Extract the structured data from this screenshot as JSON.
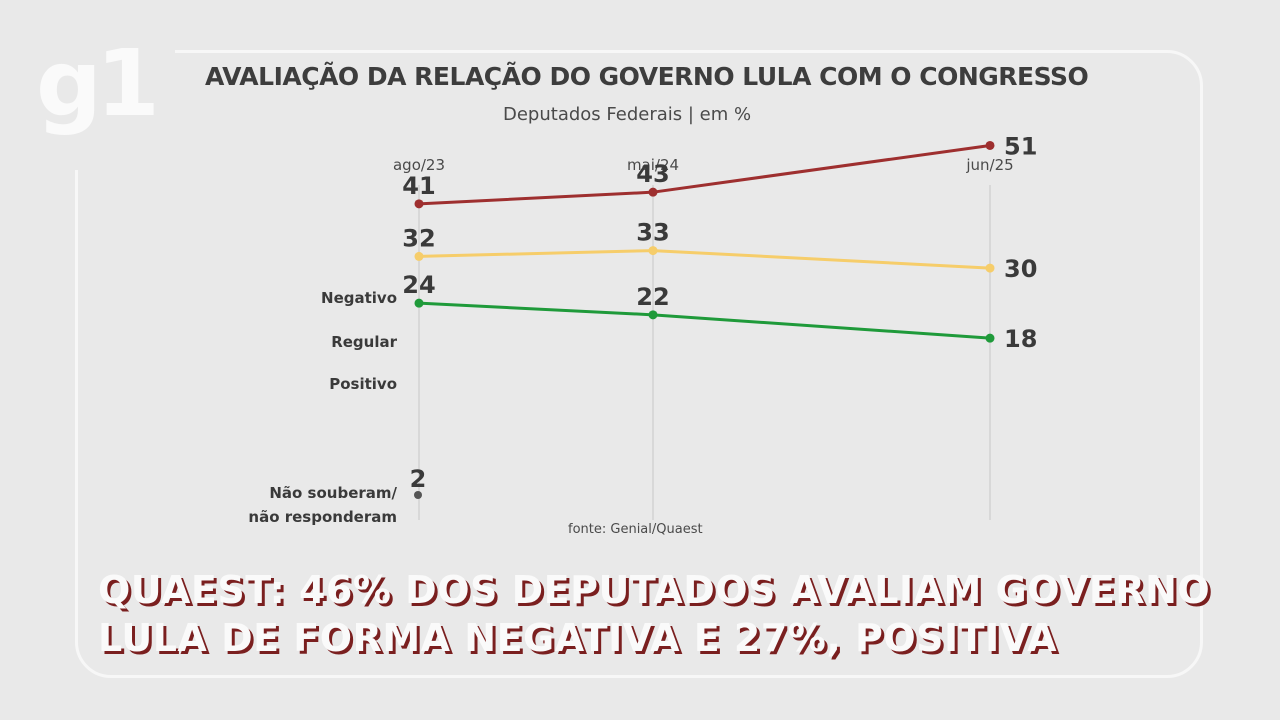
{
  "logo": "g1",
  "headline": {
    "line1": "QUAEST: 46% DOS DEPUTADOS AVALIAM GOVERNO",
    "line2": "LULA DE FORMA NEGATIVA E 27%, POSITIVA"
  },
  "chart_data": {
    "type": "line",
    "title": "AVALIAÇÃO DA RELAÇÃO DO GOVERNO LULA COM O CONGRESSO",
    "subtitle": "Deputados Federais | em %",
    "x": [
      "ago/23",
      "mai/24",
      "jun/25"
    ],
    "series": [
      {
        "name": "Negativo",
        "values": [
          41,
          43,
          51
        ],
        "color": "#9e2f2f"
      },
      {
        "name": "Regular",
        "values": [
          32,
          33,
          30
        ],
        "color": "#f6cd6a"
      },
      {
        "name": "Positivo",
        "values": [
          24,
          22,
          18
        ],
        "color": "#1f9a3a"
      }
    ],
    "extra": {
      "label_line1": "Não souberam/",
      "label_line2": "não responderam",
      "values": [
        2,
        null,
        null
      ]
    },
    "source": "fonte: Genial/Quaest",
    "grid": true,
    "legend": "left"
  }
}
